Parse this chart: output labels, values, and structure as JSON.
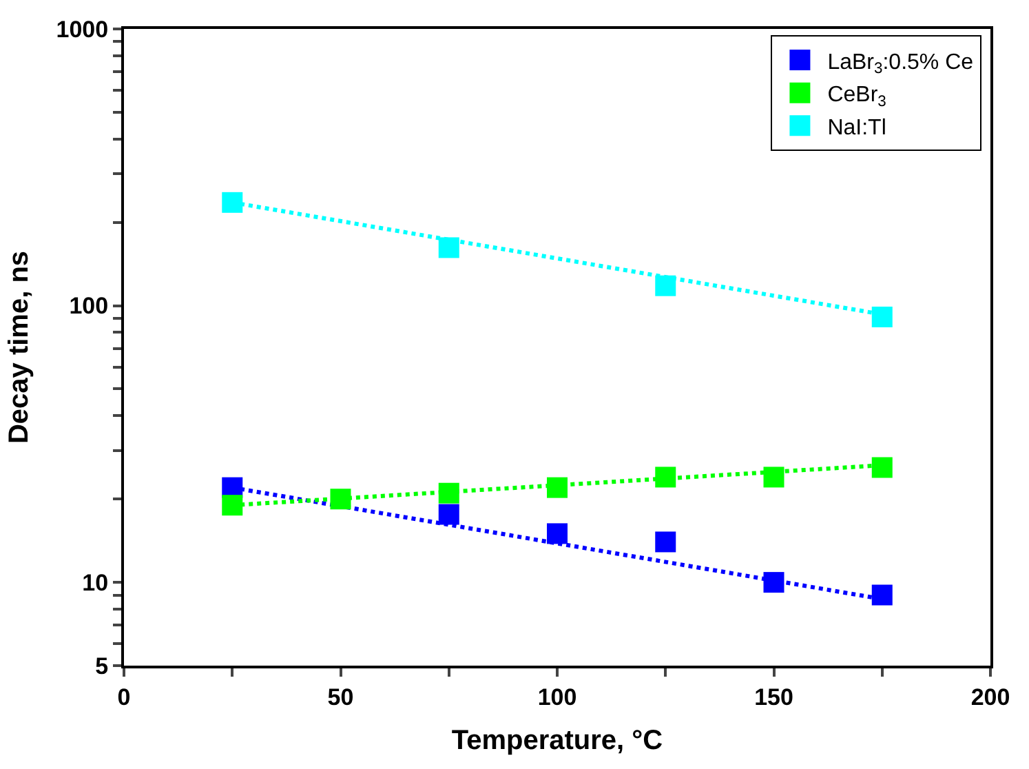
{
  "chart_data": {
    "type": "scatter",
    "xlabel": "Temperature, °C",
    "ylabel": "Decay time, ns",
    "xlim": [
      0,
      200
    ],
    "xticks": [
      0,
      {
        "value": 25,
        "label": null
      },
      50,
      {
        "value": 75,
        "label": null
      },
      100,
      {
        "value": 125,
        "label": null
      },
      150,
      {
        "value": 175,
        "label": null
      },
      200
    ],
    "ylim": [
      5,
      1000
    ],
    "log": "y",
    "yticks": [
      5,
      {
        "value": 6,
        "label": null
      },
      {
        "value": 7,
        "label": null
      },
      {
        "value": 8,
        "label": null
      },
      {
        "value": 9,
        "label": null
      },
      10,
      {
        "value": 20,
        "label": null
      },
      {
        "value": 30,
        "label": null
      },
      {
        "value": 40,
        "label": null
      },
      {
        "value": 50,
        "label": null
      },
      {
        "value": 60,
        "label": null
      },
      {
        "value": 70,
        "label": null
      },
      {
        "value": 80,
        "label": null
      },
      {
        "value": 90,
        "label": null
      },
      100,
      {
        "value": 200,
        "label": null
      },
      {
        "value": 300,
        "label": null
      },
      {
        "value": 400,
        "label": null
      },
      {
        "value": 500,
        "label": null
      },
      {
        "value": 600,
        "label": null
      },
      {
        "value": 700,
        "label": null
      },
      {
        "value": 800,
        "label": null
      },
      {
        "value": 900,
        "label": null
      },
      1000
    ],
    "legend": "top right",
    "marker": "square",
    "series": [
      {
        "type": "line",
        "marker": "none",
        "line_style": "dotted",
        "color": "#0000ff",
        "x": [
          25,
          175
        ],
        "values": [
          22,
          8.7
        ]
      },
      {
        "type": "line",
        "marker": "none",
        "line_style": "dotted",
        "color": "#00ff00",
        "x": [
          25,
          175
        ],
        "values": [
          19,
          26.5
        ]
      },
      {
        "type": "line",
        "marker": "none",
        "line_style": "dotted",
        "color": "#00ffff",
        "x": [
          25,
          175
        ],
        "values": [
          236,
          93
        ]
      },
      {
        "name": "LaBr$_{3}$:0.5% Ce",
        "color": "#0000ff",
        "x": [
          25,
          75,
          100,
          125,
          150,
          175
        ],
        "values": [
          22,
          17.6,
          15,
          14,
          10,
          9
        ]
      },
      {
        "name": "CeBr$_{3}$",
        "color": "#00ff00",
        "x": [
          25,
          50,
          75,
          100,
          125,
          150,
          175
        ],
        "values": [
          19,
          20,
          21,
          22,
          24,
          24,
          26
        ]
      },
      {
        "name": "NaI:Tl",
        "color": "#00ffff",
        "x": [
          25,
          75,
          125,
          175
        ],
        "values": [
          236,
          162,
          118,
          91
        ]
      }
    ]
  }
}
